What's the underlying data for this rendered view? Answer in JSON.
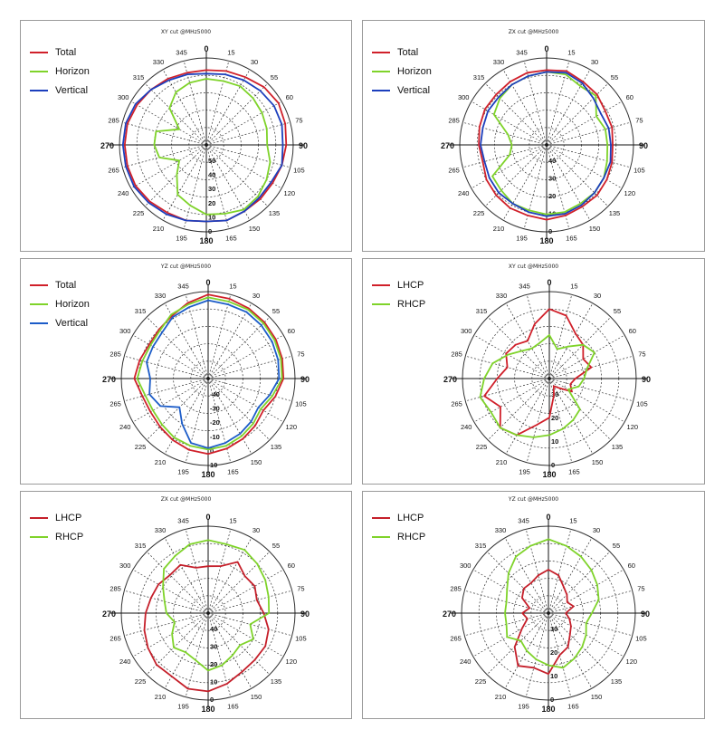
{
  "chart_data": [
    {
      "type": "polar",
      "title": "XY cut @MHz5000",
      "angle_ticks": [
        "0",
        "15",
        "30",
        "55",
        "60",
        "75",
        "90",
        "105",
        "120",
        "135",
        "150",
        "165",
        "180",
        "195",
        "210",
        "225",
        "240",
        "265",
        "270",
        "285",
        "300",
        "315",
        "330",
        "345"
      ],
      "radial_ticks": [
        "0",
        "10",
        "20",
        "30",
        "40",
        "50"
      ],
      "rlim": [
        0,
        50
      ],
      "legend_position": "top-left",
      "series": [
        {
          "name": "Total",
          "color": "#d0202a",
          "values": [
            43,
            44,
            45,
            47,
            48,
            47,
            46,
            45,
            44,
            44,
            44,
            45,
            44,
            45,
            45,
            46,
            47,
            47,
            47,
            47,
            46,
            45,
            44,
            43
          ]
        },
        {
          "name": "Horizon",
          "color": "#7fd32a",
          "values": [
            38,
            38,
            39,
            38,
            37,
            36,
            35,
            38,
            40,
            42,
            43,
            41,
            40,
            36,
            33,
            24,
            18,
            28,
            30,
            30,
            18,
            30,
            35,
            37
          ]
        },
        {
          "name": "Vertical",
          "color": "#1c3fbd",
          "values": [
            41,
            42,
            43,
            44,
            45,
            45,
            44,
            45,
            43,
            43,
            44,
            45,
            44,
            45,
            46,
            47,
            48,
            48,
            48,
            48,
            47,
            45,
            43,
            42
          ]
        }
      ]
    },
    {
      "type": "polar",
      "title": "ZX cut @MHz5000",
      "angle_ticks": [
        "0",
        "15",
        "30",
        "55",
        "60",
        "75",
        "90",
        "105",
        "120",
        "135",
        "150",
        "165",
        "180",
        "195",
        "210",
        "225",
        "240",
        "265",
        "270",
        "285",
        "300",
        "315",
        "330",
        "345"
      ],
      "radial_ticks": [
        "0",
        "10",
        "20",
        "30",
        "40"
      ],
      "rlim": [
        -50,
        0
      ],
      "legend_position": "top-left",
      "series": [
        {
          "name": "Total",
          "color": "#d0202a",
          "values": [
            -7,
            -6,
            -8,
            -9,
            -11,
            -11,
            -12,
            -11,
            -10,
            -9,
            -9,
            -8,
            -7,
            -8,
            -8,
            -9,
            -10,
            -12,
            -11,
            -10,
            -9,
            -9,
            -8,
            -7
          ]
        },
        {
          "name": "Horizon",
          "color": "#7fd32a",
          "values": [
            -8,
            -8,
            -11,
            -10,
            -17,
            -15,
            -15,
            -14,
            -12,
            -11,
            -11,
            -10,
            -10,
            -11,
            -11,
            -13,
            -14,
            -28,
            -30,
            -27,
            -15,
            -12,
            -10,
            -9
          ]
        },
        {
          "name": "Vertical",
          "color": "#1c3fbd",
          "values": [
            -8,
            -7,
            -9,
            -12,
            -14,
            -13,
            -13,
            -12,
            -12,
            -11,
            -10,
            -9,
            -9,
            -10,
            -11,
            -11,
            -12,
            -13,
            -12,
            -12,
            -11,
            -11,
            -10,
            -9
          ]
        }
      ]
    },
    {
      "type": "polar",
      "title": "YZ cut @MHz5000",
      "angle_ticks": [
        "0",
        "15",
        "30",
        "55",
        "60",
        "75",
        "90",
        "105",
        "120",
        "135",
        "150",
        "165",
        "180",
        "195",
        "210",
        "225",
        "240",
        "265",
        "270",
        "285",
        "300",
        "315",
        "330",
        "345"
      ],
      "radial_ticks": [
        "10",
        "0",
        "-10",
        "-20",
        "-30",
        "-40"
      ],
      "rlim": [
        -50,
        10
      ],
      "legend_position": "top-left",
      "series": [
        {
          "name": "Total",
          "color": "#d0202a",
          "values": [
            8,
            7,
            6,
            5,
            4,
            3,
            2,
            -2,
            -6,
            -4,
            -2,
            0,
            2,
            1,
            -1,
            -3,
            -4,
            -3,
            1,
            -1,
            -3,
            -2,
            0,
            4
          ]
        },
        {
          "name": "Horizon",
          "color": "#7fd32a",
          "values": [
            6,
            5,
            5,
            4,
            3,
            2,
            1,
            -4,
            -8,
            -6,
            -4,
            -2,
            -1,
            -2,
            -3,
            -5,
            -6,
            -5,
            -1,
            -3,
            -4,
            -3,
            1,
            3
          ]
        },
        {
          "name": "Vertical",
          "color": "#1c5cc8",
          "values": [
            4,
            3,
            3,
            2,
            1,
            0,
            -1,
            -6,
            -10,
            -8,
            -6,
            -4,
            -2,
            -4,
            -14,
            -22,
            -12,
            -8,
            -10,
            -6,
            -6,
            -5,
            -1,
            1
          ]
        }
      ]
    },
    {
      "type": "polar",
      "title": "XY cut @MHz5000",
      "angle_ticks": [
        "0",
        "15",
        "30",
        "55",
        "60",
        "75",
        "90",
        "105",
        "120",
        "135",
        "150",
        "165",
        "180",
        "195",
        "210",
        "225",
        "240",
        "265",
        "270",
        "285",
        "300",
        "315",
        "330",
        "345"
      ],
      "radial_ticks": [
        "0",
        "10",
        "20",
        "30"
      ],
      "rlim": [
        -40,
        0
      ],
      "legend_position": "top-left",
      "series": [
        {
          "name": "LHCP",
          "color": "#d0202a",
          "values": [
            -8,
            -10,
            -16,
            -18,
            -22,
            -20,
            -28,
            -30,
            -28,
            -34,
            -36,
            -32,
            -22,
            -18,
            -10,
            -8,
            -14,
            -9,
            -16,
            -20,
            -17,
            -18,
            -20,
            -14
          ]
        },
        {
          "name": "RHCP",
          "color": "#7fd32a",
          "values": [
            -20,
            -26,
            -23,
            -18,
            -16,
            -22,
            -24,
            -26,
            -30,
            -20,
            -18,
            -16,
            -14,
            -12,
            -10,
            -8,
            -9,
            -7,
            -10,
            -13,
            -18,
            -22,
            -24,
            -23
          ]
        }
      ]
    },
    {
      "type": "polar",
      "title": "ZX cut @MHz5000",
      "angle_ticks": [
        "0",
        "15",
        "30",
        "55",
        "60",
        "75",
        "90",
        "105",
        "120",
        "135",
        "150",
        "165",
        "180",
        "195",
        "210",
        "225",
        "240",
        "265",
        "270",
        "285",
        "300",
        "315",
        "330",
        "345"
      ],
      "radial_ticks": [
        "0",
        "10",
        "20",
        "30",
        "40"
      ],
      "rlim": [
        -50,
        0
      ],
      "legend_position": "top-left",
      "series": [
        {
          "name": "LHCP",
          "color": "#c51f2a",
          "values": [
            -23,
            -22,
            -16,
            -20,
            -19,
            -21,
            -18,
            -14,
            -12,
            -12,
            -11,
            -8,
            -5,
            -5,
            -8,
            -8,
            -10,
            -12,
            -14,
            -16,
            -17,
            -19,
            -18,
            -23
          ]
        },
        {
          "name": "RHCP",
          "color": "#7fd32a",
          "values": [
            -8,
            -9,
            -8,
            -10,
            -12,
            -14,
            -15,
            -25,
            -20,
            -24,
            -22,
            -19,
            -17,
            -22,
            -24,
            -22,
            -26,
            -30,
            -26,
            -24,
            -20,
            -14,
            -12,
            -9
          ]
        }
      ]
    },
    {
      "type": "polar",
      "title": "YZ cut @MHz5000",
      "angle_ticks": [
        "0",
        "15",
        "30",
        "55",
        "60",
        "75",
        "90",
        "105",
        "120",
        "135",
        "150",
        "165",
        "180",
        "195",
        "210",
        "225",
        "240",
        "265",
        "270",
        "285",
        "300",
        "315",
        "330",
        "345"
      ],
      "radial_ticks": [
        "0",
        "10",
        "20",
        "30"
      ],
      "rlim": [
        -40,
        0
      ],
      "legend_position": "top-left",
      "series": [
        {
          "name": "LHCP",
          "color": "#c51f2a",
          "values": [
            -20,
            -22,
            -26,
            -28,
            -30,
            -28,
            -32,
            -30,
            -28,
            -26,
            -22,
            -20,
            -12,
            -14,
            -12,
            -18,
            -26,
            -30,
            -28,
            -31,
            -26,
            -24,
            -24,
            -22
          ]
        },
        {
          "name": "RHCP",
          "color": "#7fd32a",
          "values": [
            -6,
            -8,
            -10,
            -12,
            -14,
            -16,
            -20,
            -22,
            -20,
            -18,
            -16,
            -14,
            -16,
            -18,
            -20,
            -22,
            -18,
            -20,
            -20,
            -20,
            -18,
            -14,
            -10,
            -8
          ]
        }
      ]
    }
  ]
}
